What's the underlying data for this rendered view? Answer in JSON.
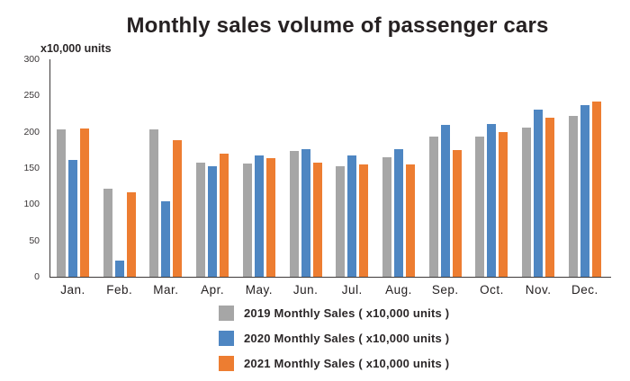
{
  "title": "Monthly sales volume of passenger cars",
  "y_axis_unit": "x10,000 units",
  "chart_data": {
    "type": "bar",
    "title": "Monthly sales volume of passenger cars",
    "ylabel": "x10,000 units",
    "xlabel": "",
    "categories": [
      "Jan.",
      "Feb.",
      "Mar.",
      "Apr.",
      "May.",
      "Jun.",
      "Jul.",
      "Aug.",
      "Sep.",
      "Oct.",
      "Nov.",
      "Dec."
    ],
    "series": [
      {
        "name": "2019 Monthly Sales ( x10,000 units )",
        "color": "#a6a6a6",
        "values": [
          203,
          122,
          203,
          157,
          156,
          173,
          153,
          165,
          193,
          193,
          206,
          222
        ]
      },
      {
        "name": "2020 Monthly Sales ( x10,000 units )",
        "color": "#4e86c2",
        "values": [
          161,
          22,
          104,
          153,
          167,
          176,
          167,
          176,
          209,
          211,
          230,
          237
        ]
      },
      {
        "name": "2021 Monthly Sales ( x10,000 units )",
        "color": "#ed7d31",
        "values": [
          204,
          116,
          188,
          170,
          164,
          157,
          155,
          155,
          175,
          200,
          219,
          242
        ]
      }
    ],
    "ylim": [
      0,
      300
    ],
    "yticks": [
      0,
      50,
      100,
      150,
      200,
      250,
      300
    ],
    "grid": false,
    "legend_position": "bottom"
  }
}
